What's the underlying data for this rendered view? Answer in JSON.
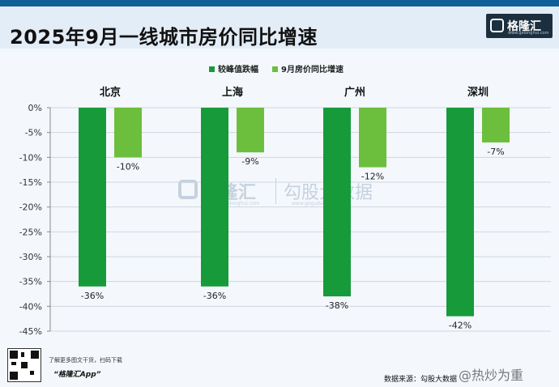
{
  "header": {
    "title": "2025年9月一线城市房价同比增速",
    "logo_text": "格隆汇",
    "logo_url": "www.gelonghui.com"
  },
  "watermark": {
    "text": "格隆汇",
    "url": "www.gelonghui.com",
    "text2": "勾股大数据",
    "url2": "www.gogudata.com"
  },
  "footer": {
    "note": "了解更多图文干货，扫码下载",
    "app": "“格隆汇App”",
    "source": "数据来源：勾股大数据",
    "weibo": "@热炒为重"
  },
  "colors": {
    "series1": "#179b3a",
    "series2": "#6cbf3c"
  },
  "chart_data": {
    "type": "bar",
    "title": "2025年9月一线城市房价同比增速",
    "categories": [
      "北京",
      "上海",
      "广州",
      "深圳"
    ],
    "series": [
      {
        "name": "较峰值跌幅",
        "values": [
          -36,
          -36,
          -38,
          -42
        ],
        "labels": [
          "-36%",
          "-36%",
          "-38%",
          "-42%"
        ]
      },
      {
        "name": "9月房价同比增速",
        "values": [
          -10,
          -9,
          -12,
          -7
        ],
        "labels": [
          "-10%",
          "-9%",
          "-12%",
          "-7%"
        ]
      }
    ],
    "ylim": [
      -45,
      0
    ],
    "yticks": [
      0,
      -5,
      -10,
      -15,
      -20,
      -25,
      -30,
      -35,
      -40,
      -45
    ],
    "ytick_labels": [
      "0%",
      "-5%",
      "-10%",
      "-15%",
      "-20%",
      "-25%",
      "-30%",
      "-35%",
      "-40%",
      "-45%"
    ],
    "legend_position": "top-center",
    "grid": true
  }
}
